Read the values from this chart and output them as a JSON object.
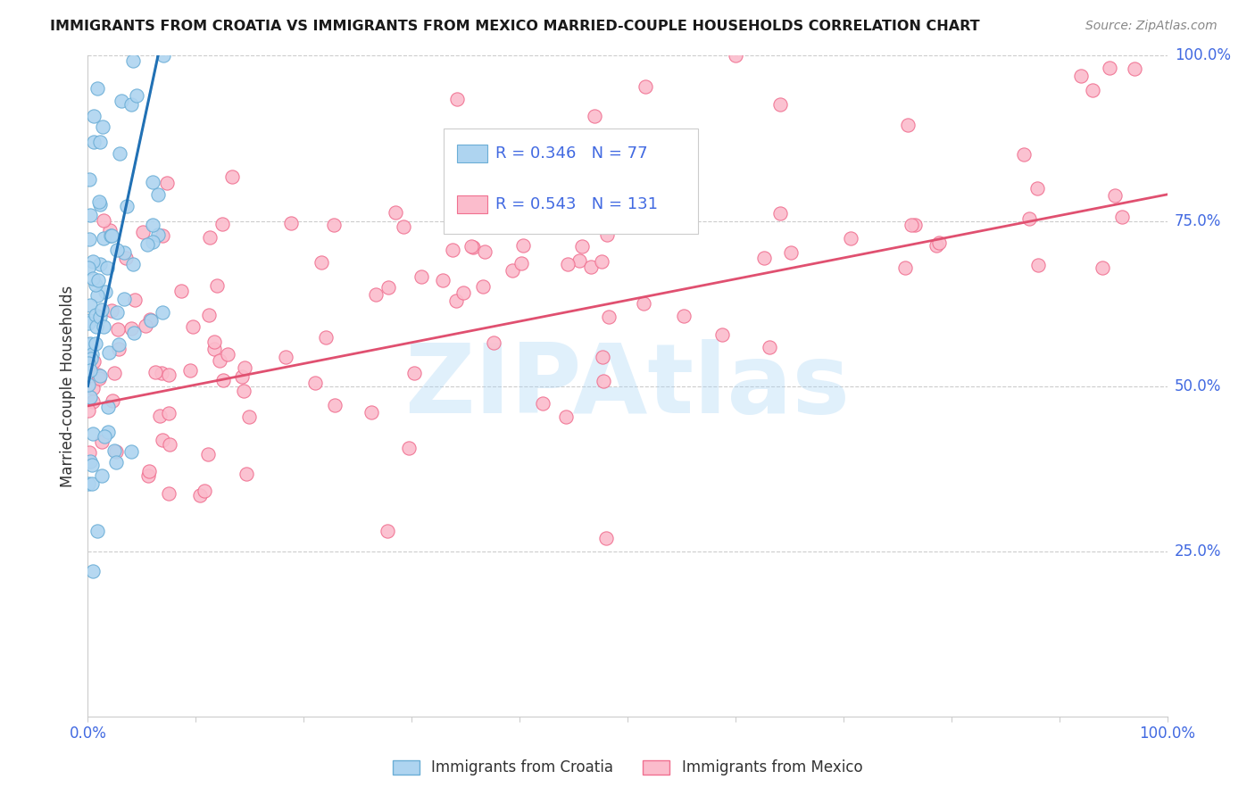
{
  "title": "IMMIGRANTS FROM CROATIA VS IMMIGRANTS FROM MEXICO MARRIED-COUPLE HOUSEHOLDS CORRELATION CHART",
  "source": "Source: ZipAtlas.com",
  "ylabel_left": "Married-couple Households",
  "xlim": [
    0.0,
    1.0
  ],
  "ylim": [
    0.0,
    1.0
  ],
  "ytick_positions": [
    0.25,
    0.5,
    0.75,
    1.0
  ],
  "ytick_labels_right": [
    "25.0%",
    "50.0%",
    "75.0%",
    "100.0%"
  ],
  "xtick_labels_first": "0.0%",
  "xtick_labels_last": "100.0%",
  "grid_color": "#cccccc",
  "background_color": "#ffffff",
  "watermark_text": "ZIPAtlas",
  "watermark_color": "#a8d4f5",
  "watermark_alpha": 0.35,
  "croatia_fill_color": "#aed4f0",
  "croatia_edge_color": "#6baed6",
  "mexico_fill_color": "#fbbccc",
  "mexico_edge_color": "#f07090",
  "legend_R_croatia": "R = 0.346",
  "legend_N_croatia": "N = 77",
  "legend_R_mexico": "R = 0.543",
  "legend_N_mexico": "N = 131",
  "croatia_R": 0.346,
  "croatia_N": 77,
  "mexico_R": 0.543,
  "mexico_N": 131,
  "croatia_trendline_color": "#2171b5",
  "mexico_trendline_color": "#e05070",
  "croatia_trendline_dashed_color": "#b0b8c8",
  "title_fontsize": 11.5,
  "source_fontsize": 10,
  "axis_label_color": "#4169E1",
  "tick_label_color": "#4169E1",
  "legend_label_croatia": "Immigrants from Croatia",
  "legend_label_mexico": "Immigrants from Mexico",
  "legend_text_color": "#333333",
  "legend_value_color": "#4169E1",
  "marker_size": 120,
  "marker_linewidth": 0.8
}
